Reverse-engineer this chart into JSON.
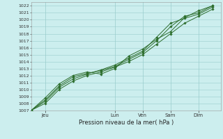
{
  "title": "Pression niveau de la mer( hPa )",
  "background_color": "#cceeee",
  "grid_color": "#99cccc",
  "line_color": "#2d6e2d",
  "ylim": [
    1007,
    1022
  ],
  "yticks": [
    1007,
    1008,
    1009,
    1010,
    1011,
    1012,
    1013,
    1014,
    1015,
    1016,
    1017,
    1018,
    1019,
    1020,
    1021
  ],
  "xtick_labels": [
    "Jeu",
    "Lun",
    "Ven",
    "Sam",
    "Dim"
  ],
  "xtick_positions": [
    0.5,
    3.0,
    4.0,
    5.0,
    6.0
  ],
  "vline_positions": [
    0.5,
    3.0,
    4.0,
    5.0,
    6.0
  ],
  "lines": [
    {
      "x": [
        0.0,
        0.5,
        1.0,
        1.5,
        2.0,
        2.5,
        3.0,
        3.5,
        4.0,
        4.5,
        5.0,
        5.5,
        6.0,
        6.5
      ],
      "y": [
        1007.0,
        1008.0,
        1010.0,
        1011.2,
        1012.0,
        1012.5,
        1013.2,
        1014.0,
        1015.0,
        1016.5,
        1018.0,
        1019.5,
        1020.5,
        1021.5
      ]
    },
    {
      "x": [
        0.0,
        0.5,
        1.0,
        1.5,
        2.0,
        2.5,
        3.0,
        3.5,
        4.0,
        4.5,
        5.0,
        5.5,
        6.0,
        6.5
      ],
      "y": [
        1007.0,
        1008.3,
        1010.3,
        1011.5,
        1012.2,
        1012.8,
        1013.5,
        1014.5,
        1015.5,
        1017.5,
        1019.5,
        1020.2,
        1020.8,
        1021.8
      ]
    },
    {
      "x": [
        0.0,
        0.5,
        1.0,
        1.5,
        2.0,
        2.5,
        3.0,
        3.5,
        4.0,
        4.5,
        5.0,
        5.5,
        6.0,
        6.5
      ],
      "y": [
        1007.0,
        1008.5,
        1010.5,
        1011.8,
        1012.3,
        1012.7,
        1013.3,
        1014.3,
        1015.3,
        1017.0,
        1019.0,
        1020.5,
        1021.0,
        1022.0
      ]
    },
    {
      "x": [
        0.0,
        0.5,
        1.0,
        1.5,
        2.0,
        2.5,
        3.0,
        3.5,
        4.0,
        4.5,
        5.0,
        5.5,
        6.0,
        6.5
      ],
      "y": [
        1007.0,
        1008.8,
        1010.8,
        1012.0,
        1012.5,
        1012.2,
        1013.0,
        1014.8,
        1015.8,
        1017.2,
        1018.3,
        1020.3,
        1021.3,
        1022.0
      ]
    }
  ],
  "xlim": [
    0.0,
    6.8
  ],
  "figsize": [
    3.2,
    2.0
  ],
  "dpi": 100
}
